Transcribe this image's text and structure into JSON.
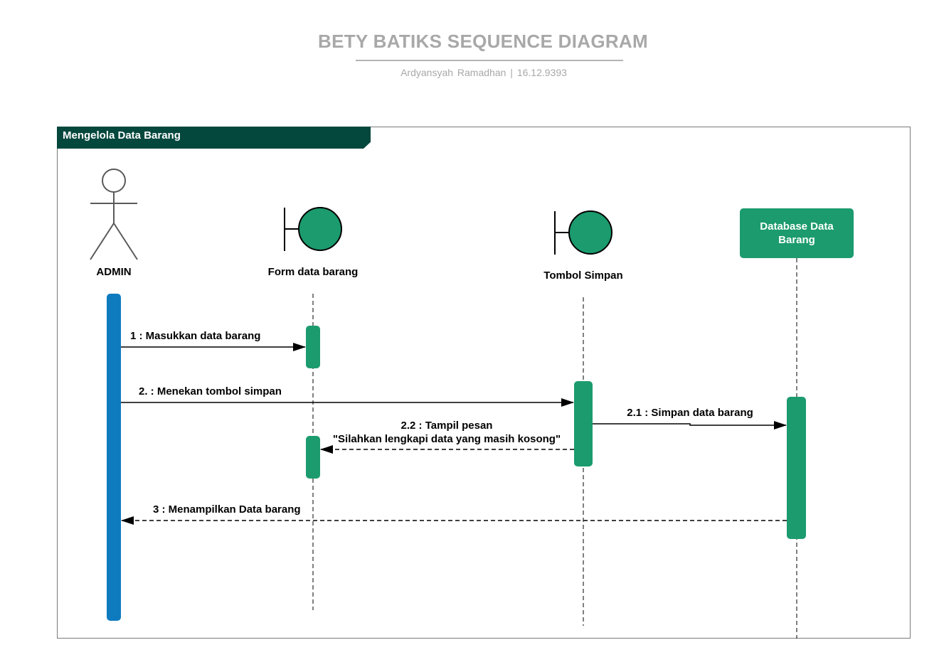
{
  "header": {
    "title": "BETY BATIKS SEQUENCE DIAGRAM",
    "subtitle": "Ardyansyah  Ramadhan  |  16.12.9393"
  },
  "frame": {
    "label": "Mengelola Data Barang"
  },
  "participants": {
    "admin": "ADMIN",
    "form": "Form data barang",
    "button": "Tombol Simpan",
    "database": "Database Data Barang"
  },
  "messages": {
    "m1": "1 : Masukkan data barang",
    "m2": "2. : Menekan tombol simpan",
    "m21": "2.1 : Simpan data barang",
    "m22_line1": "2.2 : Tampil pesan",
    "m22_line2": "\"Silahkan lengkapi data yang masih kosong\"",
    "m3": "3 : Menampilkan Data barang"
  },
  "colors": {
    "frame_tab": "#04473d",
    "boundary_fill": "#1b9b6e",
    "actor_activation": "#0e7bbf",
    "activation": "#1b9b6e",
    "heading_gray": "#a8a8a8"
  }
}
